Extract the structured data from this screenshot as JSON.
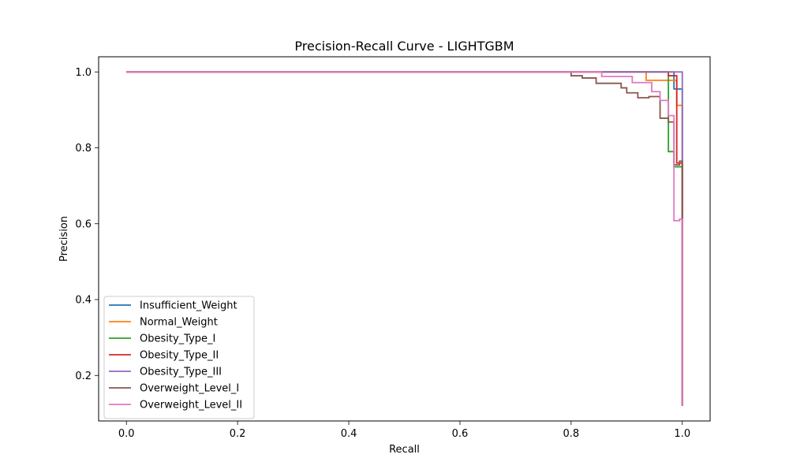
{
  "chart_data": {
    "type": "line",
    "title": "Precision-Recall Curve - LIGHTGBM",
    "xlabel": "Recall",
    "ylabel": "Precision",
    "xlim": [
      -0.05,
      1.05
    ],
    "ylim": [
      0.08,
      1.04
    ],
    "xticks": [
      0.0,
      0.2,
      0.4,
      0.6,
      0.8,
      1.0
    ],
    "xtick_labels": [
      "0.0",
      "0.2",
      "0.4",
      "0.6",
      "0.8",
      "1.0"
    ],
    "yticks": [
      0.2,
      0.4,
      0.6,
      0.8,
      1.0
    ],
    "ytick_labels": [
      "0.2",
      "0.4",
      "0.6",
      "0.8",
      "1.0"
    ],
    "grid": false,
    "legend_position": "lower-left",
    "series": [
      {
        "name": "Insufficient_Weight",
        "color": "#1f77b4",
        "x": [
          0.0,
          0.985,
          0.985,
          1.0,
          1.0
        ],
        "y": [
          1.0,
          1.0,
          0.955,
          0.955,
          0.12
        ]
      },
      {
        "name": "Normal_Weight",
        "color": "#ff7f0e",
        "x": [
          0.0,
          0.935,
          0.935,
          0.99,
          0.99,
          1.0,
          1.0
        ],
        "y": [
          1.0,
          1.0,
          0.978,
          0.978,
          0.912,
          0.912,
          0.12
        ]
      },
      {
        "name": "Obesity_Type_I",
        "color": "#2ca02c",
        "x": [
          0.0,
          0.975,
          0.975,
          0.985,
          0.985,
          1.0,
          1.0
        ],
        "y": [
          1.0,
          1.0,
          0.79,
          0.79,
          0.75,
          0.75,
          0.12
        ]
      },
      {
        "name": "Obesity_Type_II",
        "color": "#d62728",
        "x": [
          0.0,
          0.975,
          0.975,
          0.99,
          0.99,
          1.0,
          1.0
        ],
        "y": [
          1.0,
          1.0,
          0.99,
          0.99,
          0.76,
          0.76,
          0.12
        ]
      },
      {
        "name": "Obesity_Type_III",
        "color": "#9467bd",
        "x": [
          0.0,
          1.0,
          1.0
        ],
        "y": [
          1.0,
          1.0,
          0.12
        ]
      },
      {
        "name": "Overweight_Level_I",
        "color": "#8c564b",
        "x": [
          0.0,
          0.8,
          0.8,
          0.82,
          0.82,
          0.845,
          0.845,
          0.89,
          0.89,
          0.9,
          0.9,
          0.92,
          0.92,
          0.94,
          0.94,
          0.96,
          0.96,
          0.975,
          0.975,
          0.985,
          0.985,
          0.995,
          0.995,
          1.0,
          1.0
        ],
        "y": [
          1.0,
          1.0,
          0.99,
          0.99,
          0.984,
          0.984,
          0.97,
          0.97,
          0.958,
          0.958,
          0.945,
          0.945,
          0.932,
          0.932,
          0.935,
          0.935,
          0.878,
          0.878,
          0.868,
          0.868,
          0.755,
          0.755,
          0.765,
          0.765,
          0.12
        ]
      },
      {
        "name": "Overweight_Level_II",
        "color": "#e377c2",
        "x": [
          0.0,
          0.855,
          0.855,
          0.91,
          0.91,
          0.945,
          0.945,
          0.96,
          0.96,
          0.975,
          0.975,
          0.985,
          0.985,
          0.995,
          0.995,
          1.0,
          1.0
        ],
        "y": [
          1.0,
          1.0,
          0.988,
          0.988,
          0.972,
          0.972,
          0.948,
          0.948,
          0.925,
          0.925,
          0.885,
          0.885,
          0.608,
          0.608,
          0.612,
          0.612,
          0.12
        ]
      }
    ]
  }
}
